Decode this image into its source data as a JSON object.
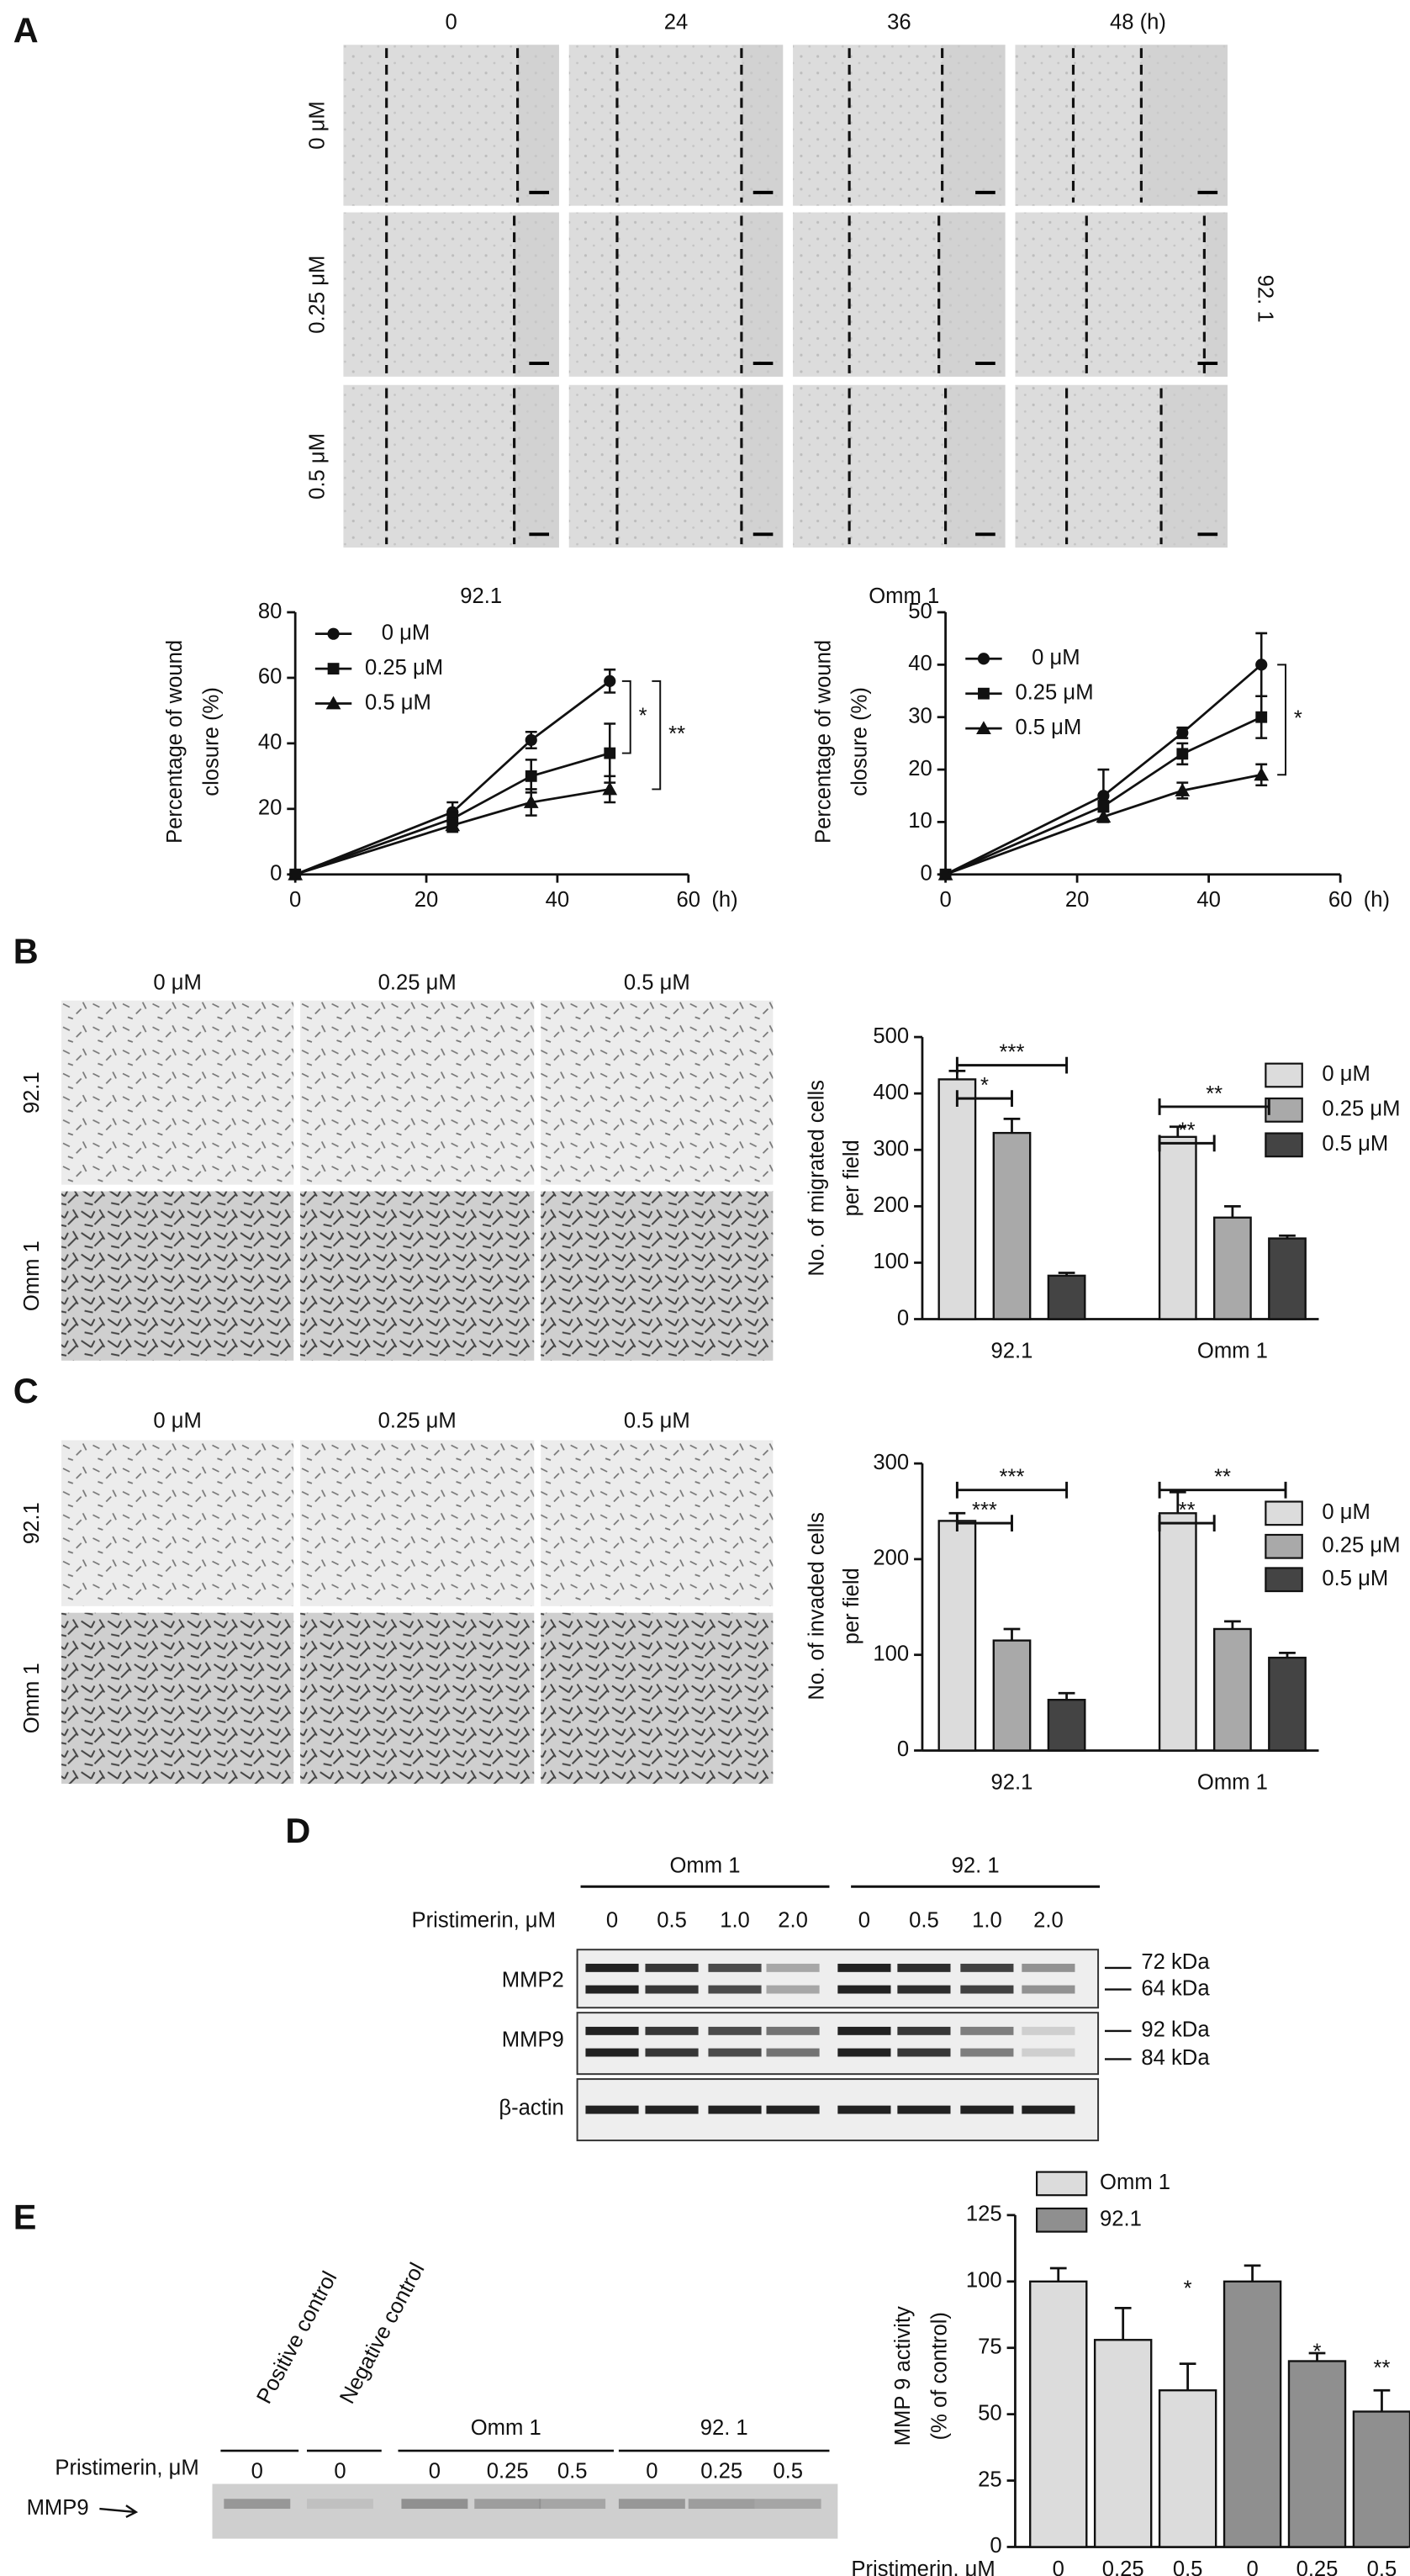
{
  "panel_labels": [
    "A",
    "B",
    "C",
    "D",
    "E"
  ],
  "panel_a": {
    "time_labels": [
      "0",
      "24",
      "36",
      "48 (h)"
    ],
    "dose_labels": [
      "0 μM",
      "0.25 μM",
      "0.5 μM"
    ],
    "cell_line": "92. 1"
  },
  "panel_b": {
    "dose_labels": [
      "0 μM",
      "0.25 μM",
      "0.5 μM"
    ],
    "cell_lines": [
      "92.1",
      "Omm 1"
    ]
  },
  "panel_c": {
    "dose_labels": [
      "0 μM",
      "0.25 μM",
      "0.5 μM"
    ],
    "cell_lines": [
      "92.1",
      "Omm 1"
    ]
  },
  "panel_d": {
    "groups": [
      "Omm 1",
      "92. 1"
    ],
    "treatment_label": "Pristimerin, μM",
    "lanes": [
      "0",
      "0.5",
      "1.0",
      "2.0",
      "0",
      "0.5",
      "1.0",
      "2.0"
    ],
    "rows": [
      "MMP2",
      "MMP9",
      "β-actin"
    ],
    "sizes": [
      "72 kDa",
      "64 kDa",
      "92 kDa",
      "84 kDa"
    ]
  },
  "panel_e": {
    "controls": [
      "Positive control",
      "Negative control"
    ],
    "groups": [
      "Omm 1",
      "92. 1"
    ],
    "treatment_label": "Pristimerin, μM",
    "lanes": [
      "0",
      "0",
      "0",
      "0.25",
      "0.5",
      "0",
      "0.25",
      "0.5"
    ],
    "row": "MMP9"
  },
  "chart_data": [
    {
      "type": "line",
      "title": "92.1",
      "y_label": [
        "Percentage of wound",
        "closure (%)"
      ],
      "x_label": "(h)",
      "x": [
        0,
        24,
        36,
        48
      ],
      "xlim": [
        0,
        60
      ],
      "xticks": [
        0,
        20,
        40,
        60
      ],
      "ylim": [
        0,
        80
      ],
      "yticks": [
        0,
        20,
        40,
        60,
        80
      ],
      "series": [
        {
          "name": "0 μM",
          "color": "#111111",
          "marker": "circle",
          "values": [
            0,
            19,
            41,
            59
          ],
          "errors": [
            0,
            3,
            2.5,
            3.5
          ]
        },
        {
          "name": "0.25 μM",
          "color": "#111111",
          "marker": "square",
          "values": [
            0,
            17,
            30,
            37
          ],
          "errors": [
            0,
            2,
            5,
            9
          ]
        },
        {
          "name": "0.5 μM",
          "color": "#111111",
          "marker": "triangle",
          "values": [
            0,
            15,
            22,
            26
          ],
          "errors": [
            0,
            2,
            4,
            4
          ]
        }
      ],
      "annotations": [
        "*",
        "**"
      ]
    },
    {
      "type": "line",
      "title": "Omm 1",
      "y_label": [
        "Percentage of wound",
        "closure (%)"
      ],
      "x_label": "(h)",
      "x": [
        0,
        24,
        36,
        48
      ],
      "xlim": [
        0,
        60
      ],
      "xticks": [
        0,
        20,
        40,
        60
      ],
      "ylim": [
        0,
        50
      ],
      "yticks": [
        0,
        10,
        20,
        30,
        40,
        50
      ],
      "series": [
        {
          "name": "0 μM",
          "color": "#111111",
          "marker": "circle",
          "values": [
            0,
            15,
            27,
            40
          ],
          "errors": [
            0,
            5,
            1,
            6
          ]
        },
        {
          "name": "0.25 μM",
          "color": "#111111",
          "marker": "square",
          "values": [
            0,
            13,
            23,
            30
          ],
          "errors": [
            0,
            1,
            2,
            4
          ]
        },
        {
          "name": "0.5 μM",
          "color": "#111111",
          "marker": "triangle",
          "values": [
            0,
            11,
            16,
            19
          ],
          "errors": [
            0,
            1,
            1.5,
            2
          ]
        }
      ],
      "annotations": [
        "*"
      ]
    },
    {
      "type": "bar",
      "y_label": [
        "No. of migrated cells",
        "per field"
      ],
      "categories": [
        "92.1",
        "Omm 1"
      ],
      "ylim": [
        0,
        500
      ],
      "yticks": [
        0,
        100,
        200,
        300,
        400,
        500
      ],
      "series": [
        {
          "name": "0 μM",
          "color": "#dcdcdc",
          "values": [
            425,
            323
          ],
          "errors": [
            15,
            18
          ]
        },
        {
          "name": "0.25 μM",
          "color": "#a9a9a9",
          "values": [
            330,
            180
          ],
          "errors": [
            25,
            20
          ]
        },
        {
          "name": "0.5 μM",
          "color": "#444444",
          "values": [
            77,
            143
          ],
          "errors": [
            5,
            5
          ]
        }
      ],
      "annotations": [
        "***",
        "*",
        "**",
        "**"
      ]
    },
    {
      "type": "bar",
      "y_label": [
        "No. of invaded cells",
        "per field"
      ],
      "categories": [
        "92.1",
        "Omm 1"
      ],
      "ylim": [
        0,
        300
      ],
      "yticks": [
        0,
        100,
        200,
        300
      ],
      "series": [
        {
          "name": "0 μM",
          "color": "#dcdcdc",
          "values": [
            240,
            248
          ],
          "errors": [
            8,
            22
          ]
        },
        {
          "name": "0.25 μM",
          "color": "#a9a9a9",
          "values": [
            115,
            127
          ],
          "errors": [
            12,
            8
          ]
        },
        {
          "name": "0.5 μM",
          "color": "#444444",
          "values": [
            53,
            97
          ],
          "errors": [
            7,
            5
          ]
        }
      ],
      "annotations": [
        "***",
        "***",
        "**",
        "**"
      ]
    },
    {
      "type": "bar",
      "y_label": [
        "MMP 9 activity",
        "(% of control)"
      ],
      "x_label": "Pristimerin, μM",
      "categories": [
        "0",
        "0.25",
        "0.5"
      ],
      "ylim": [
        0,
        125
      ],
      "yticks": [
        0,
        25,
        50,
        75,
        100,
        125
      ],
      "series": [
        {
          "name": "Omm 1",
          "color": "#dcdcdc",
          "values": [
            100,
            78,
            59
          ],
          "errors": [
            5,
            12,
            10
          ]
        },
        {
          "name": "92.1",
          "color": "#8f8f8f",
          "values": [
            100,
            70,
            51
          ],
          "errors": [
            6,
            3,
            8
          ]
        }
      ],
      "annotations": [
        "*",
        "*",
        "**"
      ]
    }
  ]
}
